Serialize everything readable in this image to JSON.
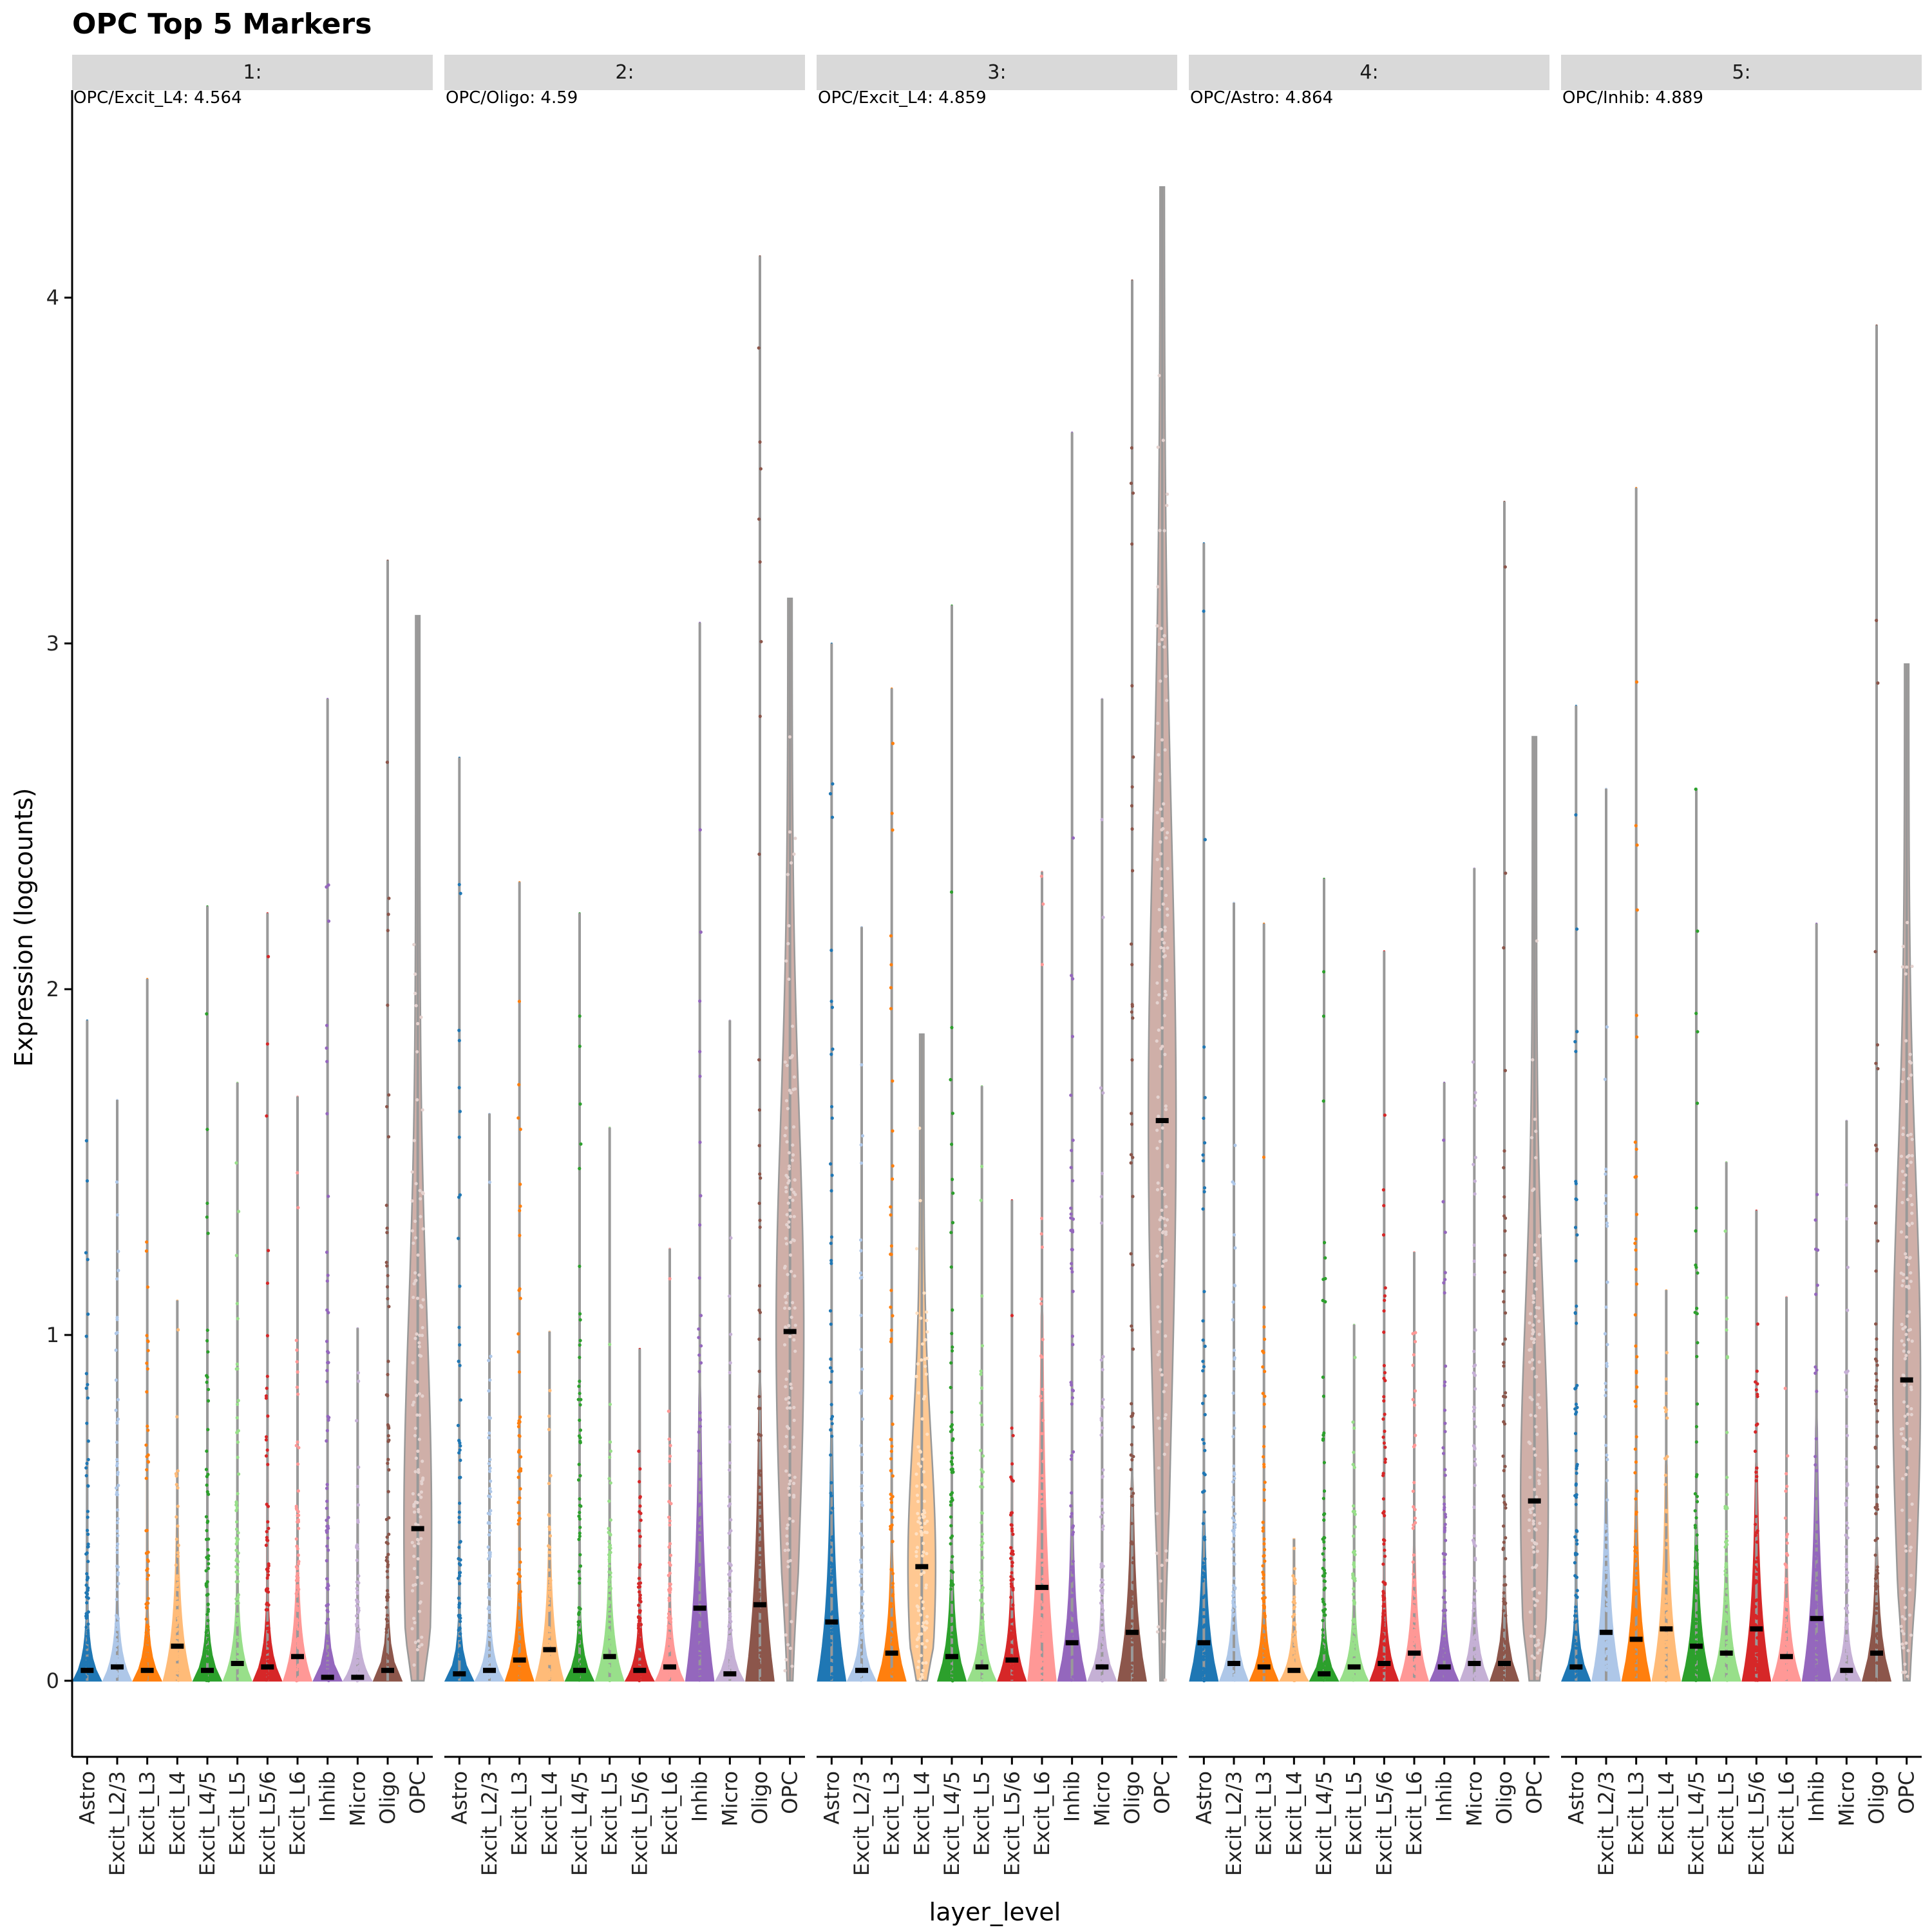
{
  "chart_data": {
    "type": "violin",
    "title": "OPC Top 5 Markers",
    "xlabel": "layer_level",
    "ylabel": "Expression (logcounts)",
    "ylim": [
      -0.22,
      4.6
    ],
    "yticks": [
      0,
      1,
      2,
      3,
      4
    ],
    "categories": [
      "Astro",
      "Excit_L2/3",
      "Excit_L3",
      "Excit_L4",
      "Excit_L4/5",
      "Excit_L5",
      "Excit_L5/6",
      "Excit_L6",
      "Inhib",
      "Micro",
      "Oligo",
      "OPC"
    ],
    "colors": [
      "#1f77b4",
      "#aec7e8",
      "#ff7f0e",
      "#ffbb78",
      "#2ca02c",
      "#98df8a",
      "#d62728",
      "#ff9896",
      "#9467bd",
      "#c5b0d5",
      "#8c564b",
      "#c49c94"
    ],
    "panels": [
      {
        "strip": "1:",
        "annotation": "OPC/Excit_L4: 4.564",
        "max": [
          1.91,
          1.68,
          2.03,
          1.1,
          2.24,
          1.73,
          2.22,
          1.69,
          2.84,
          1.02,
          3.24,
          3.08
        ],
        "median": [
          0.03,
          0.04,
          0.03,
          0.1,
          0.03,
          0.05,
          0.04,
          0.07,
          0.01,
          0.01,
          0.03,
          0.44
        ]
      },
      {
        "strip": "2:",
        "annotation": "OPC/Oligo: 4.59",
        "max": [
          2.67,
          1.64,
          2.31,
          1.01,
          2.22,
          1.6,
          0.96,
          1.25,
          3.06,
          1.91,
          4.12,
          3.13
        ],
        "median": [
          0.02,
          0.03,
          0.06,
          0.09,
          0.03,
          0.07,
          0.03,
          0.04,
          0.21,
          0.02,
          0.22,
          1.01
        ]
      },
      {
        "strip": "3:",
        "annotation": "OPC/Excit_L4: 4.859",
        "max": [
          3.0,
          2.18,
          2.87,
          1.87,
          3.11,
          1.72,
          1.39,
          2.34,
          3.61,
          2.84,
          4.05,
          4.32
        ],
        "median": [
          0.17,
          0.03,
          0.08,
          0.33,
          0.07,
          0.04,
          0.06,
          0.27,
          0.11,
          0.04,
          0.14,
          1.62
        ]
      },
      {
        "strip": "4:",
        "annotation": "OPC/Astro: 4.864",
        "max": [
          3.29,
          2.25,
          2.19,
          0.41,
          2.32,
          1.03,
          2.11,
          1.24,
          1.73,
          2.35,
          3.41,
          2.73
        ],
        "median": [
          0.11,
          0.05,
          0.04,
          0.03,
          0.02,
          0.04,
          0.05,
          0.08,
          0.04,
          0.05,
          0.05,
          0.52
        ]
      },
      {
        "strip": "5:",
        "annotation": "OPC/Inhib: 4.889",
        "max": [
          2.82,
          2.58,
          3.45,
          1.13,
          2.58,
          1.5,
          1.36,
          1.11,
          2.19,
          1.62,
          3.92,
          2.94
        ],
        "median": [
          0.04,
          0.14,
          0.12,
          0.15,
          0.1,
          0.08,
          0.15,
          0.07,
          0.18,
          0.03,
          0.08,
          0.87
        ]
      }
    ]
  }
}
